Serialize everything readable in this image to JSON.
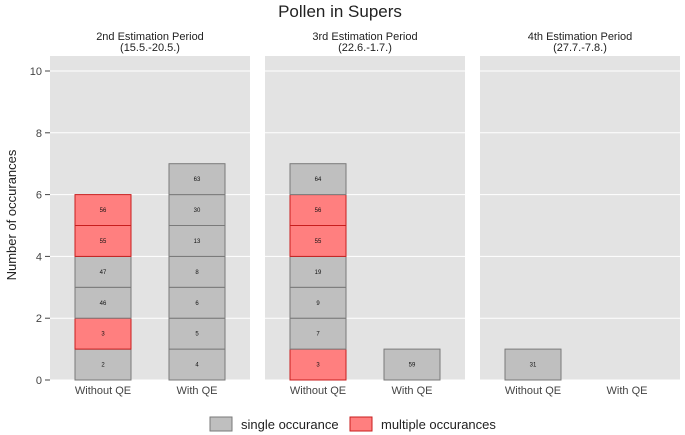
{
  "chart_data": {
    "type": "bar",
    "title": "Pollen in Supers",
    "ylabel": "Number of occurances",
    "xlabel": "",
    "ylim": [
      0,
      10
    ],
    "yticks": [
      0,
      2,
      4,
      6,
      8,
      10
    ],
    "grid": true,
    "legend": {
      "position": "bottom",
      "entries": [
        {
          "key": "single",
          "label": "single occurance",
          "fill": "#bfbfbf",
          "stroke": "#7a7a7a"
        },
        {
          "key": "multiple",
          "label": "multiple occurances",
          "fill": "#ff7f7f",
          "stroke": "#c81e1e"
        }
      ]
    },
    "panels": [
      {
        "title_line1": "2nd Estimation Period",
        "title_line2": "(15.5.-20.5.)",
        "bars": [
          {
            "category": "Without QE",
            "segments": [
              {
                "label": "2",
                "type": "single"
              },
              {
                "label": "3",
                "type": "multiple"
              },
              {
                "label": "46",
                "type": "single"
              },
              {
                "label": "47",
                "type": "single"
              },
              {
                "label": "55",
                "type": "multiple"
              },
              {
                "label": "56",
                "type": "multiple"
              }
            ]
          },
          {
            "category": "With QE",
            "segments": [
              {
                "label": "4",
                "type": "single"
              },
              {
                "label": "5",
                "type": "single"
              },
              {
                "label": "6",
                "type": "single"
              },
              {
                "label": "8",
                "type": "single"
              },
              {
                "label": "13",
                "type": "single"
              },
              {
                "label": "30",
                "type": "single"
              },
              {
                "label": "63",
                "type": "single"
              }
            ]
          }
        ]
      },
      {
        "title_line1": "3rd Estimation Period",
        "title_line2": "(22.6.-1.7.)",
        "bars": [
          {
            "category": "Without QE",
            "segments": [
              {
                "label": "3",
                "type": "multiple"
              },
              {
                "label": "7",
                "type": "single"
              },
              {
                "label": "9",
                "type": "single"
              },
              {
                "label": "19",
                "type": "single"
              },
              {
                "label": "55",
                "type": "multiple"
              },
              {
                "label": "56",
                "type": "multiple"
              },
              {
                "label": "64",
                "type": "single"
              }
            ]
          },
          {
            "category": "With QE",
            "segments": [
              {
                "label": "59",
                "type": "single"
              }
            ]
          }
        ]
      },
      {
        "title_line1": "4th Estimation Period",
        "title_line2": "(27.7.-7.8.)",
        "bars": [
          {
            "category": "Without QE",
            "segments": [
              {
                "label": "31",
                "type": "single"
              }
            ]
          },
          {
            "category": "With QE",
            "segments": []
          }
        ]
      }
    ]
  }
}
